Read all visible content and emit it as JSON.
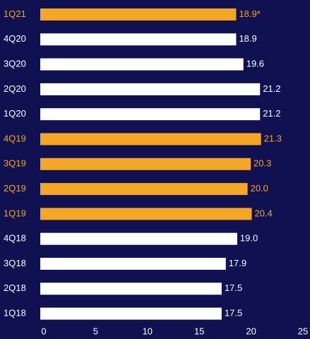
{
  "chart_data": {
    "type": "barh",
    "categories": [
      "1Q21",
      "4Q20",
      "3Q20",
      "2Q20",
      "1Q20",
      "4Q19",
      "3Q19",
      "2Q19",
      "1Q19",
      "4Q18",
      "3Q18",
      "2Q18",
      "1Q18"
    ],
    "values": [
      18.9,
      18.9,
      19.6,
      21.2,
      21.2,
      21.3,
      20.3,
      20.0,
      20.4,
      19.0,
      17.9,
      17.5,
      17.5
    ],
    "value_labels": [
      "18.9*",
      "18.9",
      "19.6",
      "21.2",
      "21.2",
      "21.3",
      "20.3",
      "20.0",
      "20.4",
      "19.0",
      "17.9",
      "17.5",
      "17.5"
    ],
    "colors": [
      "#f5a623",
      "#ffffff",
      "#ffffff",
      "#ffffff",
      "#ffffff",
      "#f5a623",
      "#f5a623",
      "#f5a623",
      "#f5a623",
      "#ffffff",
      "#ffffff",
      "#ffffff",
      "#ffffff"
    ],
    "xlim": [
      0,
      25
    ],
    "xticks": [
      0,
      5,
      10,
      15,
      20,
      25
    ]
  }
}
